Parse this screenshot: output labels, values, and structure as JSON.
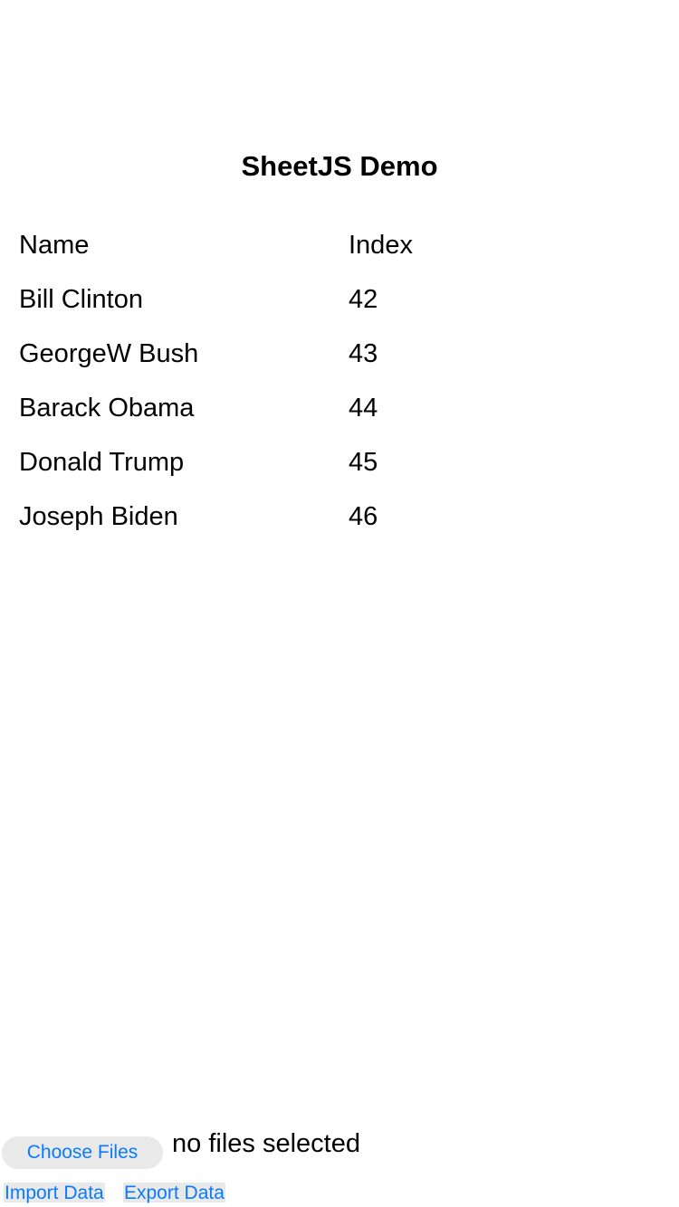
{
  "title": "SheetJS Demo",
  "table": {
    "headers": [
      "Name",
      "Index"
    ],
    "rows": [
      [
        "Bill Clinton",
        "42"
      ],
      [
        "GeorgeW Bush",
        "43"
      ],
      [
        "Barack Obama",
        "44"
      ],
      [
        "Donald Trump",
        "45"
      ],
      [
        "Joseph Biden",
        "46"
      ]
    ]
  },
  "file": {
    "choose_label": "Choose Files",
    "status": "no files selected"
  },
  "actions": {
    "import_label": "Import Data",
    "export_label": "Export Data"
  },
  "colors": {
    "accent": "#0a7aff",
    "button_bg": "#e9e9e9"
  }
}
